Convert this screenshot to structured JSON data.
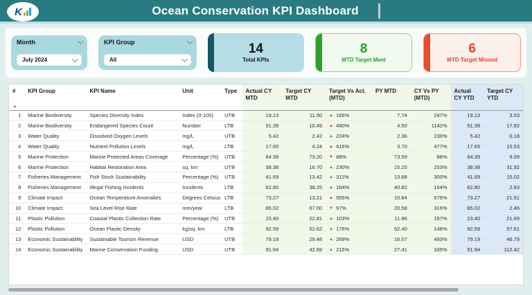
{
  "header": {
    "title": "Ocean Conservation KPI Dashboard",
    "logo_letter": "K"
  },
  "filters": {
    "month": {
      "label": "Month",
      "value": "July 2024"
    },
    "kpi_group": {
      "label": "KPI Group",
      "value": "All"
    }
  },
  "cards": {
    "total": {
      "value": "14",
      "label": "Total KPIs"
    },
    "meet": {
      "value": "8",
      "label": "MTD Target Meet"
    },
    "missed": {
      "value": "6",
      "label": "MTD Target Missed"
    }
  },
  "colors": {
    "header_teal": "#2a7a81",
    "card_total_accent": "#155663",
    "card_meet_accent": "#2ba32b",
    "card_missed_accent": "#e74c2b",
    "mtd_section_bg": "#f1f8e8",
    "ytd_section_bg": "#dae8f7",
    "trend_good": "#2e8b2e",
    "trend_bad": "#c43a2e"
  },
  "table": {
    "sort_icon": "▲",
    "columns": [
      "#",
      "KPI Group",
      "KPI Name",
      "Unit",
      "Type",
      "Actual CY MTD",
      "Target CY MTD",
      "Target Vs Act. (MTD)",
      "PY MTD",
      "CY Vs PY (MTD)",
      "Actual CY YTD",
      "Target CY YTD"
    ],
    "rows": [
      {
        "n": "1",
        "group": "Marine Biodiversity",
        "name": "Species Diversity Index",
        "unit": "Index (0-100)",
        "type": "UTB",
        "actual_mtd": "19.13",
        "target_mtd": "11.50",
        "dir": "up",
        "status": "good",
        "target_vs_act": "166%",
        "py_mtd": "7.74",
        "cy_vs_py": "247%",
        "actual_ytd": "19.13",
        "target_ytd": "3.03"
      },
      {
        "n": "2",
        "group": "Marine Biodiversity",
        "name": "Endangered Species Count",
        "unit": "Number",
        "type": "LTB",
        "actual_mtd": "51.39",
        "target_mtd": "10.49",
        "dir": "up",
        "status": "bad",
        "target_vs_act": "490%",
        "py_mtd": "4.50",
        "cy_vs_py": "1142%",
        "actual_ytd": "51.39",
        "target_ytd": "17.82"
      },
      {
        "n": "3",
        "group": "Water Quality",
        "name": "Dissolved Oxygen Levels",
        "unit": "mg/L",
        "type": "UTB",
        "actual_mtd": "5.42",
        "target_mtd": "2.42",
        "dir": "up",
        "status": "good",
        "target_vs_act": "224%",
        "py_mtd": "2.36",
        "cy_vs_py": "230%",
        "actual_ytd": "5.42",
        "target_ytd": "6.18"
      },
      {
        "n": "4",
        "group": "Water Quality",
        "name": "Nutrient Pollution Levels",
        "unit": "mg/L",
        "type": "LTB",
        "actual_mtd": "17.65",
        "target_mtd": "4.24",
        "dir": "up",
        "status": "bad",
        "target_vs_act": "416%",
        "py_mtd": "3.70",
        "cy_vs_py": "477%",
        "actual_ytd": "17.65",
        "target_ytd": "15.53"
      },
      {
        "n": "5",
        "group": "Marine Protection",
        "name": "Marine Protected Areas Coverage",
        "unit": "Percentage (%)",
        "type": "UTB",
        "actual_mtd": "64.39",
        "target_mtd": "73.20",
        "dir": "down",
        "status": "bad",
        "target_vs_act": "88%",
        "py_mtd": "73.59",
        "cy_vs_py": "88%",
        "actual_ytd": "64.39",
        "target_ytd": "9.09"
      },
      {
        "n": "6",
        "group": "Marine Protection",
        "name": "Habitat Restoration Area",
        "unit": "sq. km",
        "type": "UTB",
        "actual_mtd": "38.38",
        "target_mtd": "16.70",
        "dir": "up",
        "status": "good",
        "target_vs_act": "230%",
        "py_mtd": "15.20",
        "cy_vs_py": "253%",
        "actual_ytd": "38.38",
        "target_ytd": "31.92"
      },
      {
        "n": "7",
        "group": "Fisheries Management",
        "name": "Fish Stock Sustainability",
        "unit": "Percentage (%)",
        "type": "UTB",
        "actual_mtd": "41.69",
        "target_mtd": "13.42",
        "dir": "up",
        "status": "good",
        "target_vs_act": "311%",
        "py_mtd": "13.88",
        "cy_vs_py": "300%",
        "actual_ytd": "41.69",
        "target_ytd": "15.02"
      },
      {
        "n": "8",
        "group": "Fisheries Management",
        "name": "Illegal Fishing Incidents",
        "unit": "Incidents",
        "type": "LTB",
        "actual_mtd": "62.80",
        "target_mtd": "38.25",
        "dir": "up",
        "status": "bad",
        "target_vs_act": "164%",
        "py_mtd": "40.82",
        "cy_vs_py": "154%",
        "actual_ytd": "62.80",
        "target_ytd": "2.83"
      },
      {
        "n": "9",
        "group": "Climate Impact",
        "name": "Ocean Temperature Anomalies",
        "unit": "Degrees Celsius",
        "type": "LTB",
        "actual_mtd": "73.27",
        "target_mtd": "13.21",
        "dir": "up",
        "status": "bad",
        "target_vs_act": "555%",
        "py_mtd": "10.84",
        "cy_vs_py": "676%",
        "actual_ytd": "73.27",
        "target_ytd": "21.51"
      },
      {
        "n": "10",
        "group": "Climate Impact",
        "name": "Sea Level Rise Rate",
        "unit": "mm/year",
        "type": "LTB",
        "actual_mtd": "65.02",
        "target_mtd": "67.00",
        "dir": "down",
        "status": "good",
        "target_vs_act": "97%",
        "py_mtd": "20.58",
        "cy_vs_py": "316%",
        "actual_ytd": "65.02",
        "target_ytd": "2.46"
      },
      {
        "n": "11",
        "group": "Plastic Pollution",
        "name": "Coastal Plastic Collection Rate",
        "unit": "Percentage (%)",
        "type": "UTB",
        "actual_mtd": "23.40",
        "target_mtd": "22.81",
        "dir": "up",
        "status": "good",
        "target_vs_act": "103%",
        "py_mtd": "11.86",
        "cy_vs_py": "197%",
        "actual_ytd": "23.40",
        "target_ytd": "21.69"
      },
      {
        "n": "12",
        "group": "Plastic Pollution",
        "name": "Ocean Plastic Density",
        "unit": "kg/sq. km",
        "type": "LTB",
        "actual_mtd": "92.59",
        "target_mtd": "52.62",
        "dir": "up",
        "status": "bad",
        "target_vs_act": "176%",
        "py_mtd": "62.40",
        "cy_vs_py": "148%",
        "actual_ytd": "92.59",
        "target_ytd": "57.61"
      },
      {
        "n": "13",
        "group": "Economic Sustainability",
        "name": "Sustainable Tourism Revenue",
        "unit": "USD",
        "type": "UTB",
        "actual_mtd": "79.19",
        "target_mtd": "29.48",
        "dir": "up",
        "status": "good",
        "target_vs_act": "269%",
        "py_mtd": "16.07",
        "cy_vs_py": "493%",
        "actual_ytd": "79.19",
        "target_ytd": "46.79"
      },
      {
        "n": "14",
        "group": "Economic Sustainability",
        "name": "Marine Conservation Funding",
        "unit": "USD",
        "type": "UTB",
        "actual_mtd": "91.94",
        "target_mtd": "42.69",
        "dir": "up",
        "status": "good",
        "target_vs_act": "215%",
        "py_mtd": "27.41",
        "cy_vs_py": "335%",
        "actual_ytd": "91.94",
        "target_ytd": "112.42"
      }
    ]
  }
}
